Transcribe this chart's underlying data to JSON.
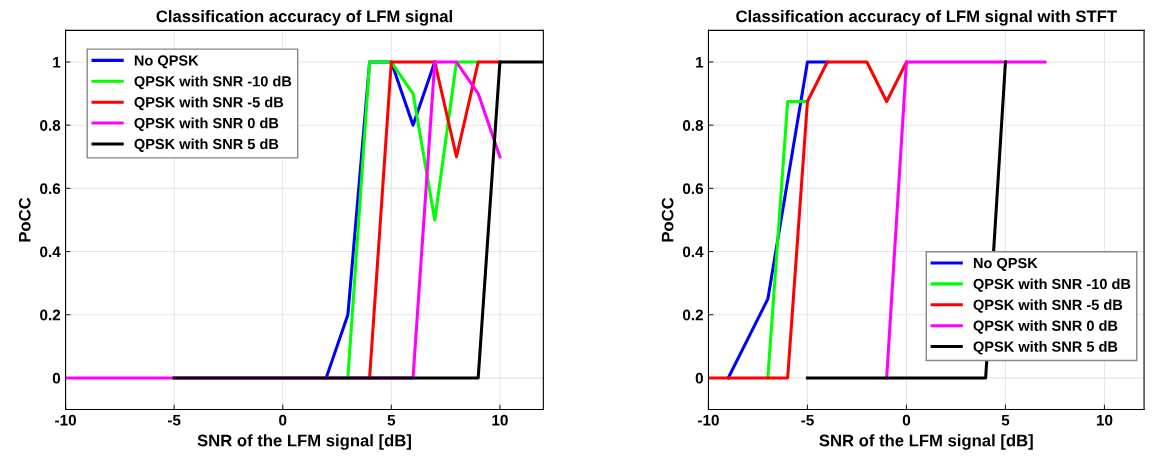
{
  "chart_data": [
    {
      "type": "line",
      "title": "Classification accuracy of LFM signal",
      "xlabel": "SNR of the LFM signal [dB]",
      "ylabel": "PoCC",
      "xlim": [
        -10,
        12
      ],
      "ylim": [
        -0.1,
        1.1
      ],
      "xticks": [
        -10,
        -5,
        0,
        5,
        10
      ],
      "yticks": [
        0,
        0.2,
        0.4,
        0.6,
        0.8,
        1
      ],
      "grid": true,
      "legend": "top left",
      "line_style": "solid",
      "marker": "none",
      "series": [
        {
          "name": "No QPSK",
          "color": "#0000ff",
          "x": [
            2,
            3,
            4,
            5,
            6,
            7
          ],
          "values": [
            0,
            0.2,
            1,
            1,
            0.8,
            1
          ]
        },
        {
          "name": "QPSK with SNR -10 dB",
          "color": "#00ff00",
          "x": [
            3,
            4,
            5,
            6,
            7,
            8,
            9
          ],
          "values": [
            0,
            1,
            1,
            0.9,
            0.5,
            1,
            1
          ]
        },
        {
          "name": "QPSK with SNR -5 dB",
          "color": "#ff0000",
          "x": [
            4,
            5,
            6,
            7,
            8,
            9,
            10
          ],
          "values": [
            0,
            1,
            1,
            1,
            0.7,
            1,
            1
          ]
        },
        {
          "name": "QPSK with SNR 0 dB",
          "color": "#ff00ff",
          "x": [
            -10,
            -9,
            -8,
            -7,
            -6,
            -5,
            -4,
            -3,
            -2,
            -1,
            0,
            1,
            2,
            3,
            4,
            5,
            6,
            7,
            8,
            9,
            10
          ],
          "values": [
            0,
            0,
            0,
            0,
            0,
            0,
            0,
            0,
            0,
            0,
            0,
            0,
            0,
            0,
            0,
            0,
            0,
            1,
            1,
            0.9,
            0.7
          ]
        },
        {
          "name": "QPSK with SNR 5 dB",
          "color": "#000000",
          "x": [
            -5,
            -4,
            -3,
            -2,
            -1,
            0,
            1,
            2,
            3,
            4,
            5,
            6,
            7,
            8,
            9,
            10,
            11,
            12
          ],
          "values": [
            0,
            0,
            0,
            0,
            0,
            0,
            0,
            0,
            0,
            0,
            0,
            0,
            0,
            0,
            0,
            1,
            1,
            1
          ]
        }
      ]
    },
    {
      "type": "line",
      "title": "Classification accuracy of LFM signal with STFT",
      "xlabel": "SNR of the LFM signal [dB]",
      "ylabel": "PoCC",
      "xlim": [
        -10,
        12
      ],
      "ylim": [
        -0.1,
        1.1
      ],
      "xticks": [
        -10,
        -5,
        0,
        5,
        10
      ],
      "yticks": [
        0,
        0.2,
        0.4,
        0.6,
        0.8,
        1
      ],
      "grid": true,
      "legend": "bottom right",
      "line_style": "solid",
      "marker": "none",
      "series": [
        {
          "name": "No QPSK",
          "color": "#0000ff",
          "x": [
            -9,
            -7,
            -5,
            -4
          ],
          "values": [
            0,
            0.25,
            1,
            1
          ]
        },
        {
          "name": "QPSK with SNR -10 dB",
          "color": "#00ff00",
          "x": [
            -7,
            -6,
            -5
          ],
          "values": [
            0,
            0.875,
            0.875
          ]
        },
        {
          "name": "QPSK with SNR -5 dB",
          "color": "#ff0000",
          "x": [
            -10,
            -9,
            -8,
            -7,
            -6,
            -5,
            -4,
            -3,
            -2,
            -1,
            0
          ],
          "values": [
            0,
            0,
            0,
            0,
            0,
            0.875,
            1,
            1,
            1,
            0.875,
            1
          ]
        },
        {
          "name": "QPSK with SNR 0 dB",
          "color": "#ff00ff",
          "x": [
            -1,
            0,
            1,
            2,
            3,
            4,
            5,
            6,
            7
          ],
          "values": [
            0,
            1,
            1,
            1,
            1,
            1,
            1,
            1,
            1
          ]
        },
        {
          "name": "QPSK with SNR 5 dB",
          "color": "#000000",
          "x": [
            -5,
            -4,
            -3,
            -2,
            -1,
            0,
            1,
            2,
            3,
            4,
            5
          ],
          "values": [
            0,
            0,
            0,
            0,
            0,
            0,
            0,
            0,
            0,
            0,
            1
          ]
        }
      ]
    }
  ]
}
